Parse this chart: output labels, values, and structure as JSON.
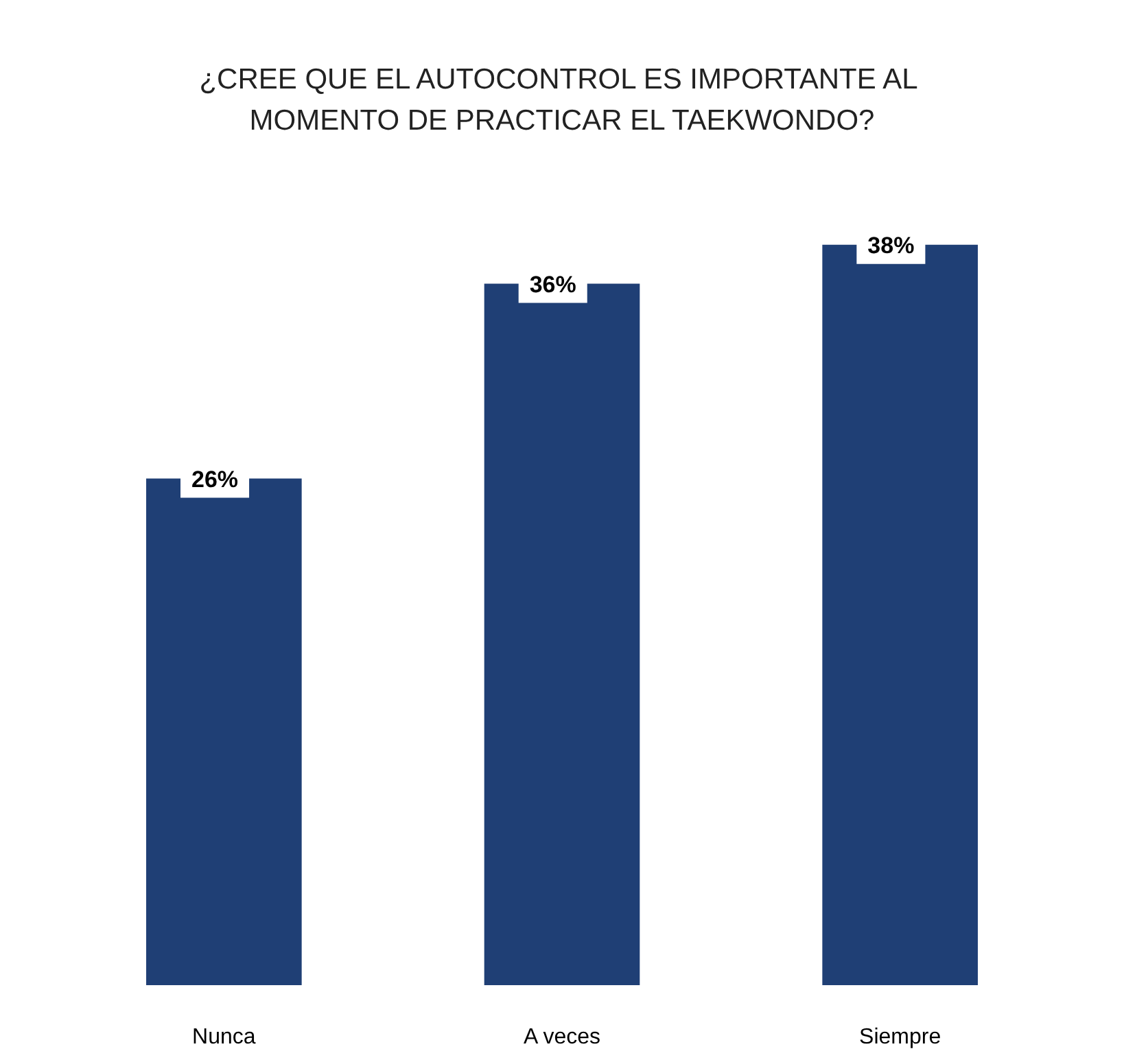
{
  "chart_data": {
    "type": "bar",
    "title": "¿CREE QUE EL AUTOCONTROL ES IMPORTANTE AL MOMENTO DE PRACTICAR EL TAEKWONDO?",
    "categories": [
      "Nunca",
      "A veces",
      "Siempre"
    ],
    "values": [
      26,
      36,
      38
    ],
    "value_labels": [
      "26%",
      "36%",
      "38%"
    ],
    "color": "#1f3f75"
  }
}
